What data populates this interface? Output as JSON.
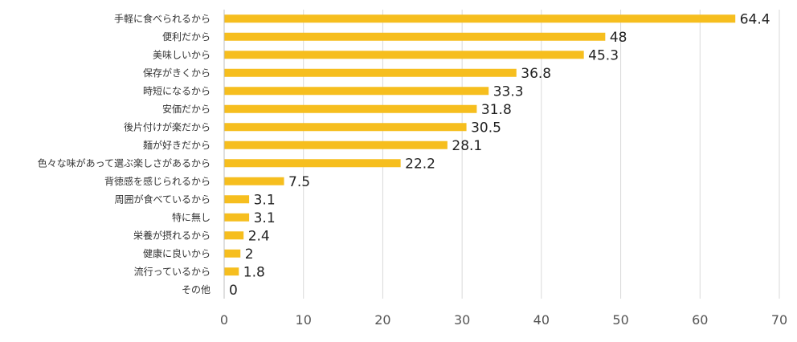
{
  "chart_data": {
    "type": "bar",
    "orientation": "horizontal",
    "categories": [
      "手軽に食べられるから",
      "便利だから",
      "美味しいから",
      "保存がきくから",
      "時短になるから",
      "安価だから",
      "後片付けが楽だから",
      "麺が好きだから",
      "色々な味があって選ぶ楽しさがあるから",
      "背徳感を感じられるから",
      "周囲が食べているから",
      "特に無し",
      "栄養が摂れるから",
      "健康に良いから",
      "流行っているから",
      "その他"
    ],
    "values": [
      64.4,
      48,
      45.3,
      36.8,
      33.3,
      31.8,
      30.5,
      28.1,
      22.2,
      7.5,
      3.1,
      3.1,
      2.4,
      2,
      1.8,
      0
    ],
    "value_labels": [
      "64.4",
      "48",
      "45.3",
      "36.8",
      "33.3",
      "31.8",
      "30.5",
      "28.1",
      "22.2",
      "7.5",
      "3.1",
      "3.1",
      "2.4",
      "2",
      "1.8",
      "0"
    ],
    "x_ticks": [
      "0",
      "10",
      "20",
      "30",
      "40",
      "50",
      "60",
      "70"
    ],
    "xlim": [
      0,
      70
    ],
    "grid": true,
    "bar_color": "#F6BE1E",
    "title": "",
    "xlabel": "",
    "ylabel": ""
  }
}
